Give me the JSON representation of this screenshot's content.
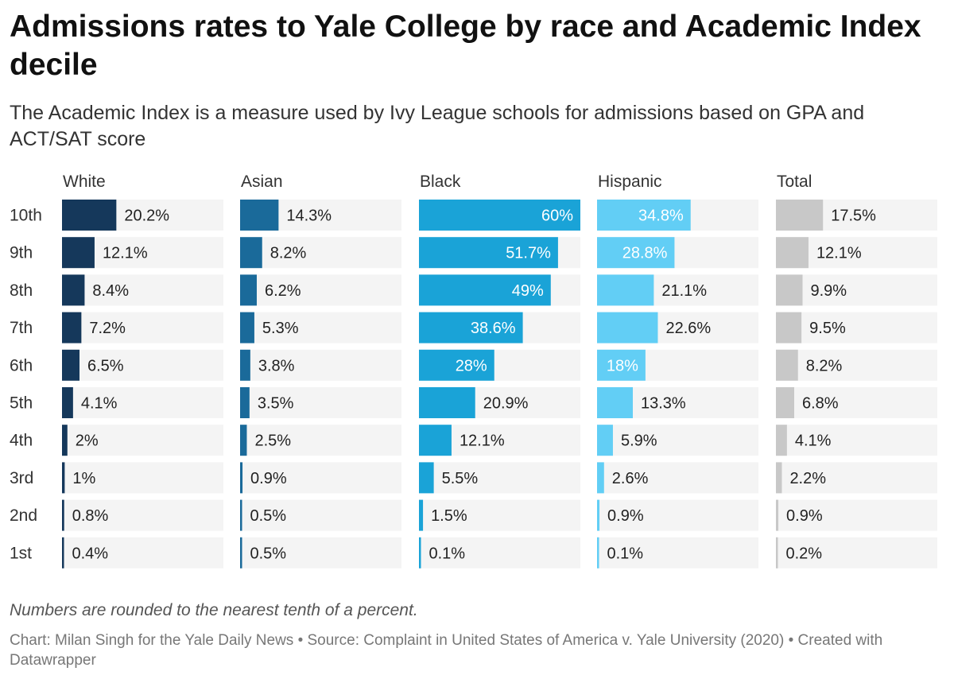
{
  "title": "Admissions rates to Yale College by race and Academic Index decile",
  "subtitle": "The Academic Index is a measure used by Ivy League schools for admissions based on GPA and ACT/SAT score",
  "note": "Numbers are rounded to the nearest tenth of a percent.",
  "credit": "Chart: Milan Singh for the Yale Daily News • Source: Complaint in United States of America v. Yale University (2020) • Created with Datawrapper",
  "chart_data": {
    "type": "bar",
    "orientation": "horizontal",
    "layout": "small-multiples",
    "title": "Admissions rates to Yale College by race and Academic Index decile",
    "subtitle": "The Academic Index is a measure used by Ivy League schools for admissions based on GPA and ACT/SAT score",
    "categories": [
      "10th",
      "9th",
      "8th",
      "7th",
      "6th",
      "5th",
      "4th",
      "3rd",
      "2nd",
      "1st"
    ],
    "xlim": [
      0,
      60
    ],
    "unit": "%",
    "series": [
      {
        "name": "White",
        "color": "#15385b",
        "values": [
          20.2,
          12.1,
          8.4,
          7.2,
          6.5,
          4.1,
          2,
          1,
          0.8,
          0.4
        ]
      },
      {
        "name": "Asian",
        "color": "#1a6a9a",
        "values": [
          14.3,
          8.2,
          6.2,
          5.3,
          3.8,
          3.5,
          2.5,
          0.9,
          0.5,
          0.5
        ]
      },
      {
        "name": "Black",
        "color": "#1aa3d7",
        "values": [
          60,
          51.7,
          49,
          38.6,
          28,
          20.9,
          12.1,
          5.5,
          1.5,
          0.1
        ]
      },
      {
        "name": "Hispanic",
        "color": "#62cef5",
        "values": [
          34.8,
          28.8,
          21.1,
          22.6,
          18,
          13.3,
          5.9,
          2.6,
          0.9,
          0.1
        ]
      },
      {
        "name": "Total",
        "color": "#c8c8c8",
        "values": [
          17.5,
          12.1,
          9.9,
          9.5,
          8.2,
          6.8,
          4.1,
          2.2,
          0.9,
          0.2
        ]
      }
    ],
    "colors": {
      "track": "#f4f4f4",
      "label_inside": "#ffffff",
      "label_outside": "#222222",
      "axis_text": "#333333"
    }
  }
}
